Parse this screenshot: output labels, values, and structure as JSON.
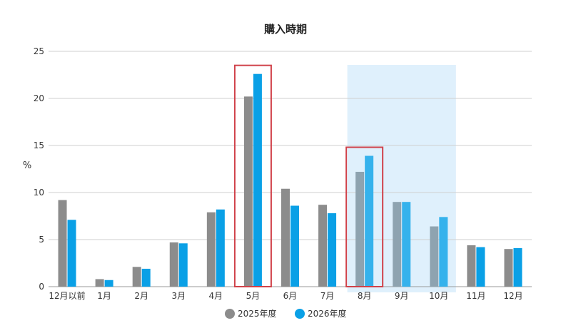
{
  "chart_data": {
    "type": "bar",
    "title": "購入時期",
    "xlabel": "",
    "ylabel": "%",
    "ylim": [
      0,
      25
    ],
    "yticks": [
      0,
      5,
      10,
      15,
      20,
      25
    ],
    "grid": true,
    "legend_position": "bottom",
    "categories": [
      "12月以前",
      "1月",
      "2月",
      "3月",
      "4月",
      "5月",
      "6月",
      "7月",
      "8月",
      "9月",
      "10月",
      "11月",
      "12月"
    ],
    "series": [
      {
        "name": "2025年度",
        "color": "#8c8c8c",
        "values": [
          9.2,
          0.8,
          2.1,
          4.7,
          7.9,
          20.2,
          10.4,
          8.7,
          12.2,
          9.0,
          6.4,
          4.4,
          4.0
        ]
      },
      {
        "name": "2026年度",
        "color": "#0aa0e6",
        "values": [
          7.1,
          0.7,
          1.9,
          4.6,
          8.2,
          22.6,
          8.6,
          7.8,
          13.9,
          9.0,
          7.4,
          4.2,
          4.1
        ]
      }
    ],
    "highlight_region": {
      "from": "8月",
      "to": "10月",
      "color": "#dff0fc"
    },
    "highlight_boxes": [
      {
        "category": "5月",
        "color": "#d0424a"
      },
      {
        "category": "8月",
        "color": "#d0424a"
      }
    ]
  }
}
